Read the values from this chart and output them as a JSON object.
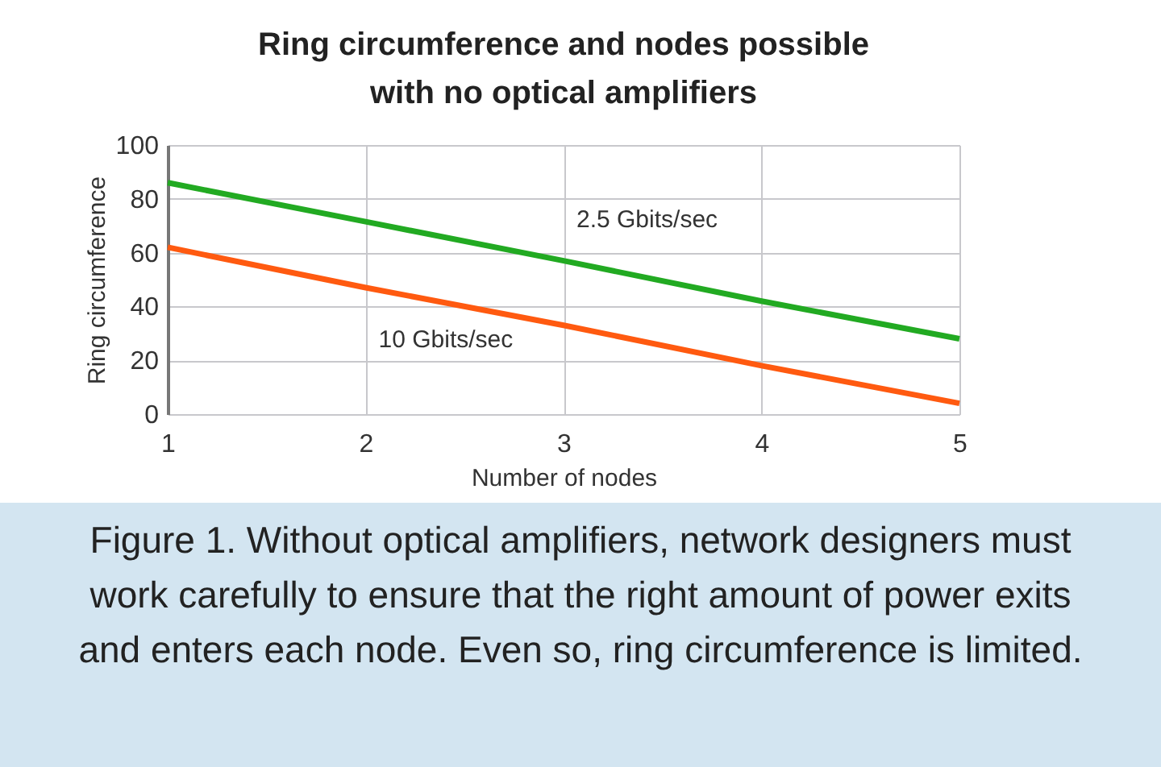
{
  "chart_data": {
    "type": "line",
    "title": "Ring circumference and nodes possible with no optical amplifiers",
    "xlabel": "Number of nodes",
    "ylabel": "Ring circumference",
    "x": [
      1,
      2,
      3,
      4,
      5
    ],
    "series": [
      {
        "name": "2.5 Gbits/sec",
        "color": "#22aa22",
        "values": [
          86,
          71.5,
          57,
          42,
          28
        ]
      },
      {
        "name": "10 Gbits/sec",
        "color": "#ff5a10",
        "values": [
          62,
          47,
          33,
          18,
          4
        ]
      }
    ],
    "xlim": [
      1,
      5
    ],
    "xticks": [
      1,
      2,
      3,
      4,
      5
    ],
    "ylim": [
      0,
      100
    ],
    "yticks": [
      0,
      20,
      40,
      60,
      80,
      100
    ],
    "grid": true,
    "marker": "none",
    "line_style": "solid",
    "annotations": [
      "Figure 1. Without optical amplifiers, network designers must work carefully to ensure that the right amount of power exits and enters each node. Even so, ring circumference is limited."
    ]
  }
}
